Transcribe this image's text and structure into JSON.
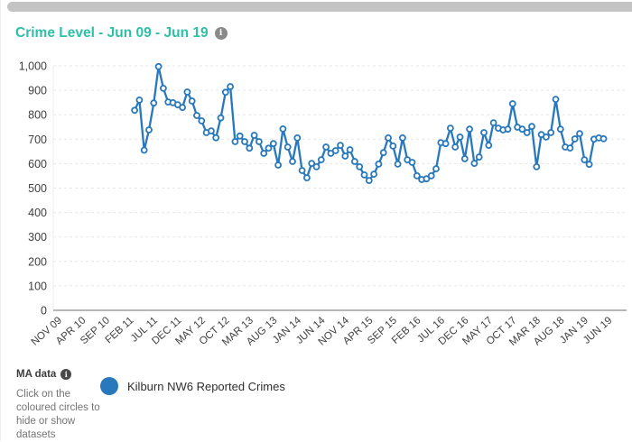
{
  "header": {
    "title": "Crime Level - Jun 09 - Jun 19",
    "info_icon": "i"
  },
  "legend": {
    "items": [
      {
        "label": "Kilburn NW6 Reported Crimes",
        "color": "#2878bd"
      }
    ]
  },
  "footer": {
    "ma_label": "MA data",
    "ma_info_icon": "i",
    "hint": "Click on the coloured circles to hide or show datasets"
  },
  "chart_data": {
    "type": "line",
    "title": "Crime Level - Jun 09 - Jun 19",
    "xlabel": "",
    "ylabel": "",
    "ylim": [
      0,
      1000
    ],
    "y_tick_step": 100,
    "grid": "horizontal-dashed",
    "legend_position": "bottom-left",
    "x_axis_start": "Nov 2009",
    "x_axis_months_total": 116,
    "x_tick_every_months": 5,
    "x_tick_labels": [
      "NOV 09",
      "APR 10",
      "SEP 10",
      "FEB 11",
      "JUL 11",
      "DEC 11",
      "MAY 12",
      "OCT 12",
      "MAR 13",
      "AUG 13",
      "JAN 14",
      "JUN 14",
      "NOV 14",
      "APR 15",
      "SEP 15",
      "FEB 16",
      "JUL 16",
      "DEC 16",
      "MAY 17",
      "OCT 17",
      "MAR 18",
      "AUG 18",
      "JAN 19",
      "JUN 19"
    ],
    "series": [
      {
        "name": "Kilburn NW6 Reported Crimes",
        "color": "#2878bd",
        "marker": "open-circle",
        "data_start_month": "Apr 2011",
        "data_start_month_index": 17,
        "values": [
          818,
          860,
          655,
          738,
          848,
          997,
          908,
          852,
          849,
          841,
          830,
          893,
          856,
          797,
          775,
          727,
          734,
          706,
          787,
          892,
          915,
          690,
          713,
          690,
          663,
          716,
          690,
          642,
          663,
          682,
          594,
          742,
          668,
          609,
          705,
          572,
          542,
          601,
          587,
          616,
          668,
          642,
          653,
          675,
          631,
          657,
          609,
          587,
          554,
          531,
          557,
          598,
          645,
          705,
          672,
          598,
          705,
          616,
          605,
          550,
          535,
          538,
          550,
          579,
          686,
          682,
          745,
          668,
          709,
          620,
          741,
          601,
          627,
          727,
          675,
          767,
          745,
          738,
          741,
          845,
          749,
          741,
          727,
          752,
          587,
          719,
          709,
          727,
          863,
          741,
          668,
          664,
          701,
          723,
          616,
          597,
          700,
          705,
          702
        ]
      }
    ]
  },
  "colors": {
    "accent_teal": "#2dbfa7",
    "line_blue": "#2878bd",
    "grid": "#e7e7e7",
    "axis": "#8c8c8c",
    "tick_text": "#3f3f3f"
  }
}
